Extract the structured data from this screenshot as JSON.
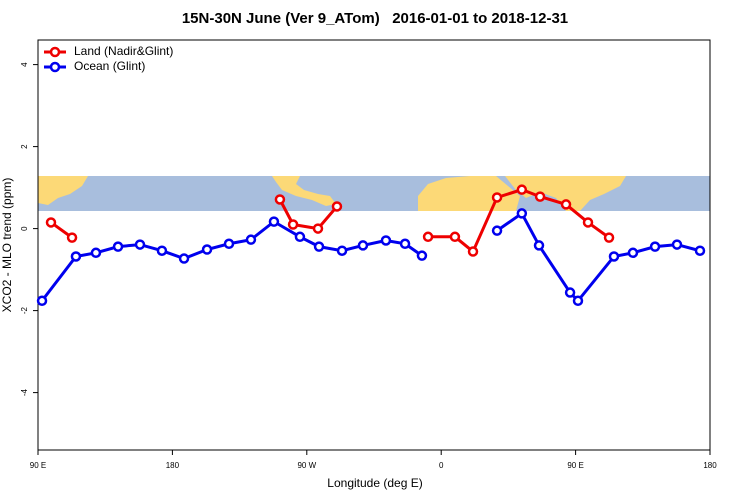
{
  "chart_data": {
    "type": "line",
    "title": "15N-30N June (Ver 9_ATom)   2016-01-01 to 2018-12-31",
    "xlabel": "Longitude (deg E)",
    "ylabel": "XCO2 - MLO trend (ppm)",
    "xlim": [
      90,
      540
    ],
    "ylim": [
      -5.4,
      4.6
    ],
    "xticks": [
      {
        "value": 90,
        "label": "90 E"
      },
      180,
      {
        "value": 270,
        "label": "90 W"
      },
      {
        "value": 360,
        "label": "0"
      },
      {
        "value": 450,
        "label": "90 E"
      },
      {
        "value": 540,
        "label": "180"
      }
    ],
    "yticks": [
      4,
      2,
      0,
      -2,
      -4
    ],
    "legend": "top-left",
    "series": [
      {
        "name": "Land (Nadir&Glint)",
        "color": "#ee0000",
        "x": [
          98.7,
          112.8,
          180,
          252,
          260.8,
          277.5,
          290.2,
          320,
          351.2,
          369.2,
          381.3,
          397.4,
          414,
          426.2,
          443.6,
          458.3,
          472.4
        ],
        "values": [
          0.15,
          -0.22,
          null,
          0.71,
          0.1,
          0,
          0.54,
          null,
          -0.2,
          -0.2,
          -0.56,
          0.76,
          0.95,
          0.78,
          0.59,
          0.15,
          -0.22
        ]
      },
      {
        "name": "Ocean (Glint)",
        "color": "#0000ee",
        "x": [
          92.7,
          115.4,
          128.8,
          143.6,
          158.3,
          173,
          187.8,
          203.2,
          217.9,
          232.6,
          248,
          265.4,
          278.2,
          293.6,
          307.6,
          323,
          335.8,
          347.1,
          370,
          397.4,
          414,
          425.5,
          446.3,
          451.6,
          475.7,
          488.4,
          503.2,
          517.9,
          533.3
        ],
        "values": [
          -1.76,
          -0.68,
          -0.59,
          -0.44,
          -0.39,
          -0.54,
          -0.73,
          -0.51,
          -0.37,
          -0.27,
          0.17,
          -0.2,
          -0.44,
          -0.54,
          -0.41,
          -0.29,
          -0.37,
          -0.66,
          null,
          -0.05,
          0.37,
          -0.41,
          -1.56,
          -1.76,
          -0.68,
          -0.59,
          -0.44,
          -0.39,
          -0.54
        ]
      }
    ]
  }
}
